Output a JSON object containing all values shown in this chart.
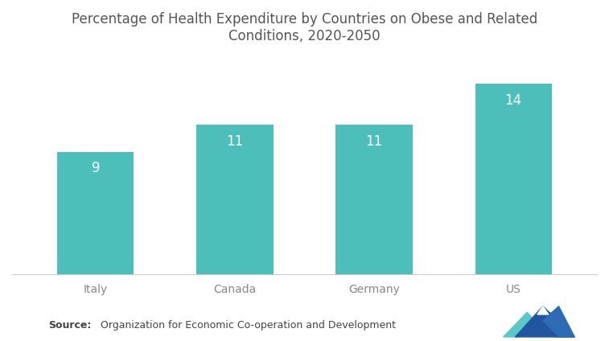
{
  "title": "Percentage of Health Expenditure by Countries on Obese and Related\nConditions, 2020-2050",
  "categories": [
    "Italy",
    "Canada",
    "Germany",
    "US"
  ],
  "values": [
    9,
    11,
    11,
    14
  ],
  "bar_color": "#4DBFBA",
  "label_color": "#ffffff",
  "label_fontsize": 12,
  "title_fontsize": 12,
  "ylim": [
    0,
    16
  ],
  "background_color": "#ffffff",
  "source_bold": "Source:",
  "source_normal": "  Organization for Economic Co-operation and Development",
  "tick_fontsize": 10,
  "bar_width": 0.55,
  "title_color": "#555555",
  "tick_color": "#888888"
}
